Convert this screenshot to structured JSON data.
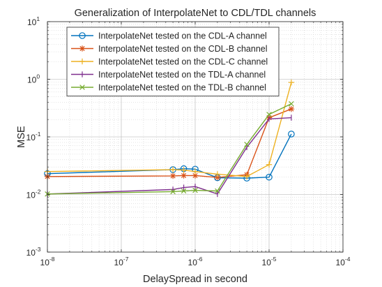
{
  "chart_data": {
    "type": "line",
    "title": "Generalization of InterpolateNet to CDL/TDL channels",
    "xlabel": "DelaySpread in second",
    "ylabel": "MSE",
    "x_scale": "log",
    "y_scale": "log",
    "xlim": [
      1e-08,
      0.0001
    ],
    "ylim": [
      0.001,
      10
    ],
    "x_ticks": [
      {
        "value": 1e-08,
        "base": "10",
        "exp": "-8"
      },
      {
        "value": 1e-07,
        "base": "10",
        "exp": "-7"
      },
      {
        "value": 1e-06,
        "base": "10",
        "exp": "-6"
      },
      {
        "value": 1e-05,
        "base": "10",
        "exp": "-5"
      },
      {
        "value": 0.0001,
        "base": "10",
        "exp": "-4"
      }
    ],
    "y_ticks": [
      {
        "value": 0.001,
        "base": "10",
        "exp": "-3"
      },
      {
        "value": 0.01,
        "base": "10",
        "exp": "-2"
      },
      {
        "value": 0.1,
        "base": "10",
        "exp": "-1"
      },
      {
        "value": 1,
        "base": "10",
        "exp": "0"
      },
      {
        "value": 10,
        "base": "10",
        "exp": "1"
      }
    ],
    "grid": true,
    "legend_position": "top-left",
    "series": [
      {
        "name": "InterpolateNet tested on the CDL-A channel",
        "color": "#0072BD",
        "marker": "circle",
        "x": [
          1e-08,
          5e-07,
          7e-07,
          1e-06,
          2e-06,
          5e-06,
          1e-05,
          2e-05
        ],
        "y": [
          0.023,
          0.027,
          0.028,
          0.0275,
          0.0195,
          0.0192,
          0.02,
          0.112
        ]
      },
      {
        "name": "InterpolateNet tested on the CDL-B channel",
        "color": "#D95319",
        "marker": "star",
        "x": [
          1e-08,
          5e-07,
          7e-07,
          1e-06,
          2e-06,
          5e-06,
          1e-05,
          2e-05
        ],
        "y": [
          0.0205,
          0.021,
          0.0213,
          0.0213,
          0.0198,
          0.022,
          0.215,
          0.305
        ]
      },
      {
        "name": "InterpolateNet tested on the CDL-C channel",
        "color": "#EDB120",
        "marker": "plus",
        "x": [
          1e-08,
          5e-07,
          7e-07,
          1e-06,
          2e-06,
          5e-06,
          1e-05,
          2e-05
        ],
        "y": [
          0.025,
          0.027,
          0.0265,
          0.025,
          0.0225,
          0.0205,
          0.033,
          0.88
        ]
      },
      {
        "name": "InterpolateNet tested on the TDL-A channel",
        "color": "#7E2F8E",
        "marker": "vline",
        "x": [
          1e-08,
          5e-07,
          7e-07,
          1e-06,
          2e-06,
          5e-06,
          1e-05,
          2e-05
        ],
        "y": [
          0.0102,
          0.0122,
          0.0132,
          0.0137,
          0.0102,
          0.066,
          0.205,
          0.215
        ]
      },
      {
        "name": "InterpolateNet tested on the TDL-B channel",
        "color": "#77AC30",
        "marker": "x",
        "x": [
          1e-08,
          5e-07,
          7e-07,
          1e-06,
          2e-06,
          5e-06,
          1e-05,
          2e-05
        ],
        "y": [
          0.0102,
          0.0112,
          0.0115,
          0.0118,
          0.0115,
          0.074,
          0.245,
          0.375
        ]
      }
    ]
  }
}
